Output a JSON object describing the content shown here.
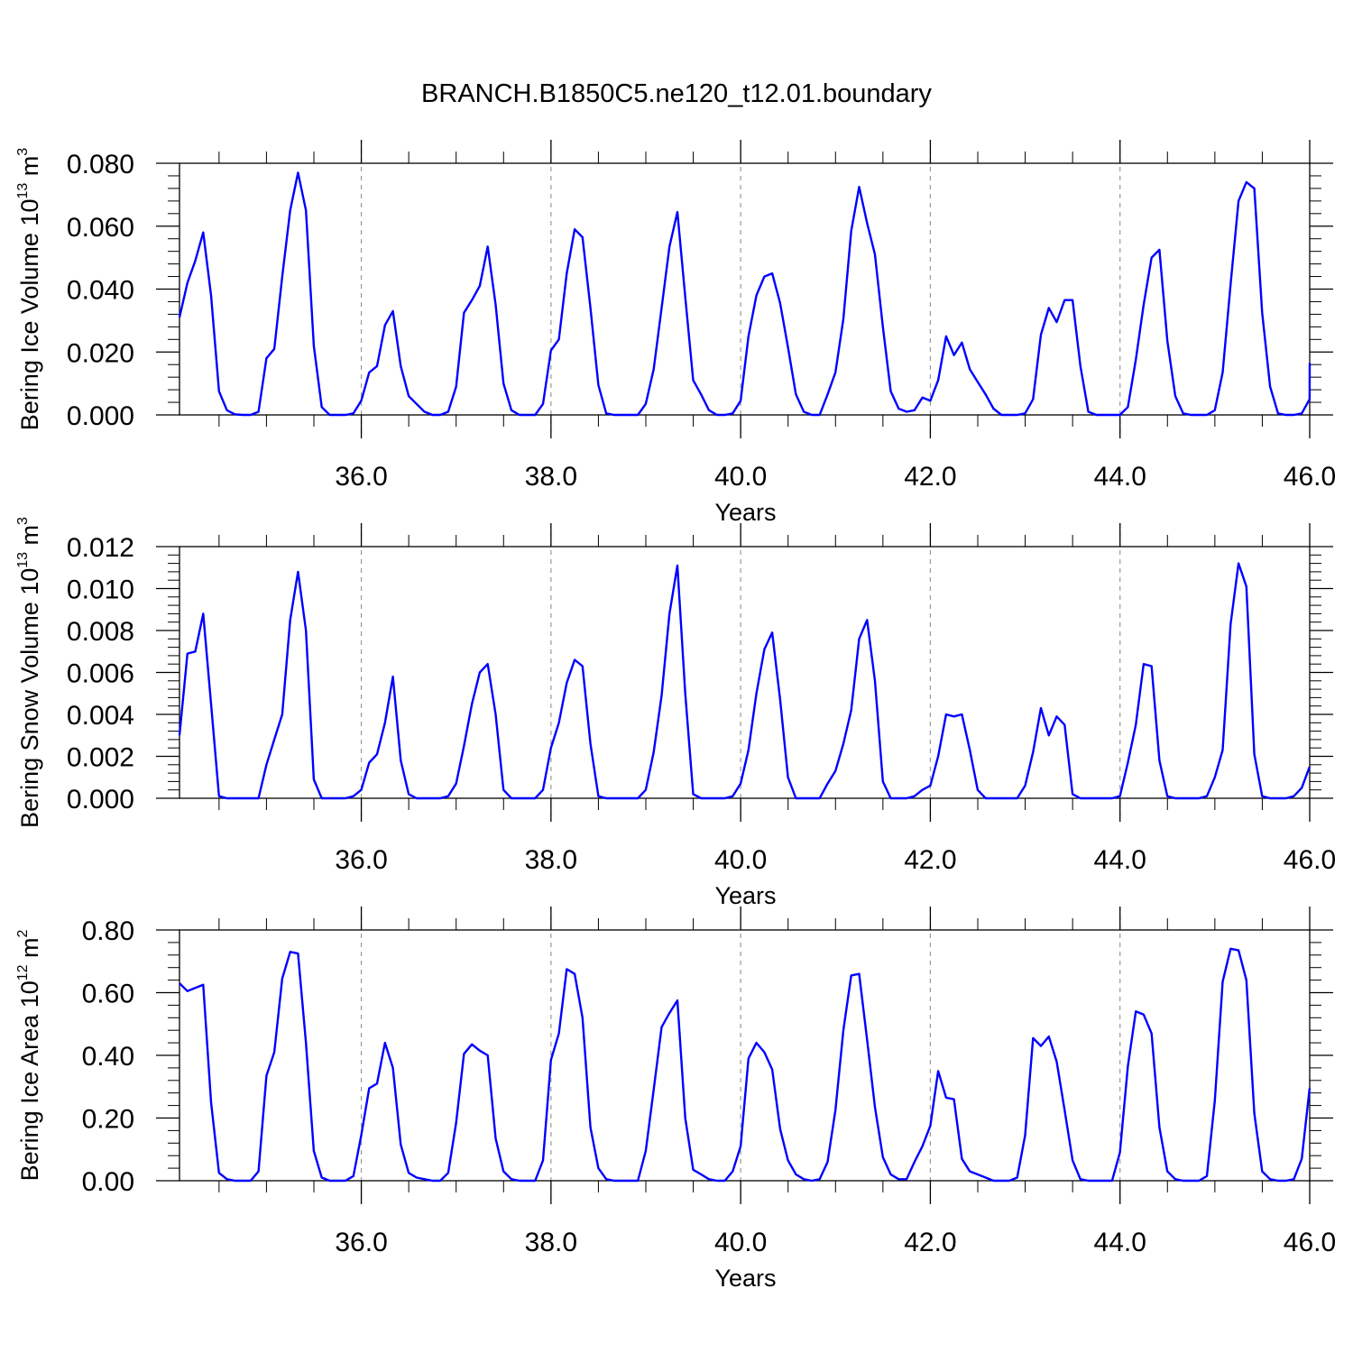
{
  "title": "BRANCH.B1850C5.ne120_t12.01.boundary",
  "colors": {
    "line": "#0000ff",
    "axis": "#000000",
    "grid": "#999999"
  },
  "chart_data": [
    {
      "type": "line",
      "xlabel": "Years",
      "ylabel": {
        "prefix": "Bering Ice Volume 10",
        "exp": "13",
        "unit": " m",
        "unit_exp": "3"
      },
      "xlim": [
        34.083,
        46.0
      ],
      "ylim": [
        0,
        0.08
      ],
      "xticks": [
        36.0,
        38.0,
        40.0,
        42.0,
        44.0,
        46.0
      ],
      "xtick_labels": [
        "36.0",
        "38.0",
        "40.0",
        "42.0",
        "44.0",
        "46.0"
      ],
      "yticks": [
        0,
        0.02,
        0.04,
        0.06,
        0.08
      ],
      "ytick_labels": [
        "0.000",
        "0.020",
        "0.040",
        "0.060",
        "0.080"
      ],
      "grid_x": true,
      "x_start": 34.083,
      "x_step": 0.08333,
      "values": [
        0.031,
        0.042,
        0.049,
        0.058,
        0.038,
        0.0075,
        0.0015,
        0.0002,
        0,
        0,
        0.001,
        0.018,
        0.021,
        0.044,
        0.065,
        0.077,
        0.065,
        0.022,
        0.0025,
        0,
        0,
        0,
        0.0005,
        0.0045,
        0.0135,
        0.0155,
        0.0285,
        0.033,
        0.0155,
        0.006,
        0.0035,
        0.001,
        0,
        0,
        0.001,
        0.009,
        0.0325,
        0.0365,
        0.041,
        0.0535,
        0.035,
        0.01,
        0.0015,
        0,
        0,
        0,
        0.0035,
        0.0205,
        0.024,
        0.045,
        0.059,
        0.0565,
        0.034,
        0.0095,
        0.0005,
        0,
        0,
        0,
        0,
        0.0035,
        0.0145,
        0.034,
        0.0535,
        0.0645,
        0.0375,
        0.011,
        0.0065,
        0.0015,
        0,
        0,
        0.0005,
        0.0045,
        0.025,
        0.038,
        0.044,
        0.045,
        0.0355,
        0.0215,
        0.0065,
        0.001,
        0,
        0,
        0.0065,
        0.0135,
        0.0305,
        0.0585,
        0.0725,
        0.061,
        0.051,
        0.028,
        0.0075,
        0.002,
        0.001,
        0.0015,
        0.0055,
        0.0045,
        0.011,
        0.025,
        0.019,
        0.023,
        0.0145,
        0.0105,
        0.0065,
        0.002,
        0,
        0,
        0,
        0.0005,
        0.005,
        0.0255,
        0.034,
        0.0295,
        0.0365,
        0.0365,
        0.0155,
        0.001,
        0,
        0,
        0,
        0,
        0.0025,
        0.0175,
        0.035,
        0.05,
        0.0525,
        0.0235,
        0.006,
        0.0005,
        0,
        0,
        0,
        0.0015,
        0.0135,
        0.0415,
        0.068,
        0.074,
        0.072,
        0.0325,
        0.009,
        0.0005,
        0,
        0,
        0.0005,
        0.005,
        0.0165
      ]
    },
    {
      "type": "line",
      "xlabel": "Years",
      "ylabel": {
        "prefix": "Bering Snow Volume 10",
        "exp": "13",
        "unit": " m",
        "unit_exp": "3"
      },
      "xlim": [
        34.083,
        46.0
      ],
      "ylim": [
        0,
        0.012
      ],
      "xticks": [
        36.0,
        38.0,
        40.0,
        42.0,
        44.0,
        46.0
      ],
      "xtick_labels": [
        "36.0",
        "38.0",
        "40.0",
        "42.0",
        "44.0",
        "46.0"
      ],
      "yticks": [
        0,
        0.002,
        0.004,
        0.006,
        0.008,
        0.01,
        0.012
      ],
      "ytick_labels": [
        "0.000",
        "0.002",
        "0.004",
        "0.006",
        "0.008",
        "0.010",
        "0.012"
      ],
      "grid_x": true,
      "x_start": 34.083,
      "x_step": 0.08333,
      "values": [
        0.003,
        0.0069,
        0.007,
        0.0088,
        0.0045,
        0.0001,
        0,
        0,
        0,
        0,
        0,
        0.0016,
        0.0028,
        0.004,
        0.0085,
        0.0108,
        0.008,
        0.0009,
        0,
        0,
        0,
        0,
        0.0001,
        0.0004,
        0.0017,
        0.0021,
        0.0036,
        0.0058,
        0.0018,
        0.0002,
        0,
        0,
        0,
        0,
        0.0001,
        0.0007,
        0.0025,
        0.0045,
        0.006,
        0.0064,
        0.004,
        0.0004,
        0,
        0,
        0,
        0,
        0.0004,
        0.0024,
        0.0036,
        0.0055,
        0.0066,
        0.0063,
        0.0026,
        0.0001,
        0,
        0,
        0,
        0,
        0,
        0.0004,
        0.0022,
        0.0049,
        0.0088,
        0.0111,
        0.005,
        0.0002,
        0,
        0,
        0,
        0,
        0.0001,
        0.0007,
        0.0023,
        0.005,
        0.0071,
        0.0079,
        0.0047,
        0.001,
        0,
        0,
        0,
        0,
        0.0007,
        0.0013,
        0.0026,
        0.0042,
        0.0076,
        0.0085,
        0.0056,
        0.0008,
        0,
        0,
        0,
        0.0001,
        0.0004,
        0.0006,
        0.002,
        0.004,
        0.0039,
        0.004,
        0.0023,
        0.0004,
        0,
        0,
        0,
        0,
        0,
        0.0006,
        0.0022,
        0.0043,
        0.003,
        0.0039,
        0.0035,
        0.0002,
        0,
        0,
        0,
        0,
        0,
        0.0001,
        0.0017,
        0.0035,
        0.0064,
        0.0063,
        0.0018,
        0.0001,
        0,
        0,
        0,
        0,
        0.0001,
        0.001,
        0.0023,
        0.0083,
        0.0112,
        0.0101,
        0.0021,
        0.0001,
        0,
        0,
        0,
        0.0001,
        0.0005,
        0.0015
      ]
    },
    {
      "type": "line",
      "xlabel": "Years",
      "ylabel": {
        "prefix": "Bering Ice Area 10",
        "exp": "12",
        "unit": " m",
        "unit_exp": "2"
      },
      "xlim": [
        34.083,
        46.0
      ],
      "ylim": [
        0,
        0.8
      ],
      "xticks": [
        36.0,
        38.0,
        40.0,
        42.0,
        44.0,
        46.0
      ],
      "xtick_labels": [
        "36.0",
        "38.0",
        "40.0",
        "42.0",
        "44.0",
        "46.0"
      ],
      "yticks": [
        0,
        0.2,
        0.4,
        0.6,
        0.8
      ],
      "ytick_labels": [
        "0.00",
        "0.20",
        "0.40",
        "0.60",
        "0.80"
      ],
      "grid_x": true,
      "x_start": 34.083,
      "x_step": 0.08333,
      "values": [
        0.63,
        0.605,
        0.615,
        0.625,
        0.25,
        0.025,
        0.005,
        0,
        0,
        0,
        0.03,
        0.335,
        0.41,
        0.645,
        0.73,
        0.725,
        0.44,
        0.095,
        0.01,
        0,
        0,
        0,
        0.015,
        0.145,
        0.295,
        0.31,
        0.44,
        0.36,
        0.115,
        0.025,
        0.01,
        0.005,
        0,
        0,
        0.025,
        0.185,
        0.405,
        0.435,
        0.415,
        0.4,
        0.135,
        0.03,
        0.005,
        0,
        0,
        0,
        0.065,
        0.385,
        0.47,
        0.675,
        0.66,
        0.52,
        0.17,
        0.04,
        0.005,
        0,
        0,
        0,
        0,
        0.095,
        0.29,
        0.49,
        0.535,
        0.575,
        0.2,
        0.035,
        0.02,
        0.005,
        0,
        0,
        0.03,
        0.11,
        0.39,
        0.44,
        0.41,
        0.355,
        0.165,
        0.065,
        0.02,
        0.005,
        0,
        0.005,
        0.06,
        0.225,
        0.48,
        0.655,
        0.66,
        0.45,
        0.235,
        0.075,
        0.02,
        0.005,
        0.005,
        0.06,
        0.11,
        0.175,
        0.35,
        0.265,
        0.26,
        0.07,
        0.03,
        0.02,
        0.01,
        0,
        0,
        0,
        0.01,
        0.145,
        0.455,
        0.43,
        0.46,
        0.38,
        0.225,
        0.065,
        0.005,
        0,
        0,
        0,
        0,
        0.09,
        0.365,
        0.54,
        0.53,
        0.47,
        0.17,
        0.03,
        0.005,
        0,
        0,
        0,
        0.015,
        0.255,
        0.635,
        0.74,
        0.735,
        0.64,
        0.215,
        0.03,
        0.005,
        0,
        0,
        0.005,
        0.07,
        0.295
      ]
    }
  ]
}
